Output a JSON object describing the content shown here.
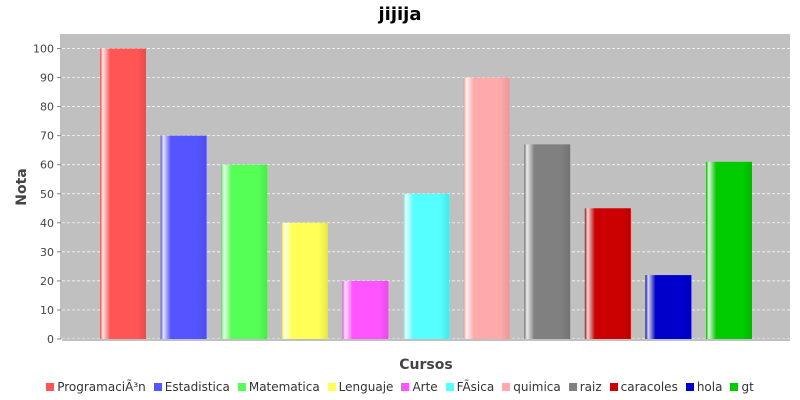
{
  "chart_data": {
    "type": "bar",
    "title": "jijija",
    "xlabel": "Cursos",
    "ylabel": "Nota",
    "ylim": [
      0,
      105
    ],
    "yticks": [
      0,
      10,
      20,
      30,
      40,
      50,
      60,
      70,
      80,
      90,
      100
    ],
    "grid": true,
    "legend_position": "bottom",
    "series": [
      {
        "name": "ProgramaciÃ³n",
        "value": 100,
        "color": "#ff5555"
      },
      {
        "name": "Estadistica",
        "value": 70,
        "color": "#5555ff"
      },
      {
        "name": "Matematica",
        "value": 60,
        "color": "#55ff55"
      },
      {
        "name": "Lenguaje",
        "value": 40,
        "color": "#ffff55"
      },
      {
        "name": "Arte",
        "value": 20,
        "color": "#ff55ff"
      },
      {
        "name": "FÃ­sica",
        "value": 50,
        "color": "#55ffff"
      },
      {
        "name": "quimica",
        "value": 90,
        "color": "#ffaaaa"
      },
      {
        "name": "raiz",
        "value": 67,
        "color": "#808080"
      },
      {
        "name": "caracoles",
        "value": 45,
        "color": "#cc0000"
      },
      {
        "name": "hola",
        "value": 22,
        "color": "#0000cc"
      },
      {
        "name": "gt",
        "value": 61,
        "color": "#00cc00"
      }
    ]
  }
}
